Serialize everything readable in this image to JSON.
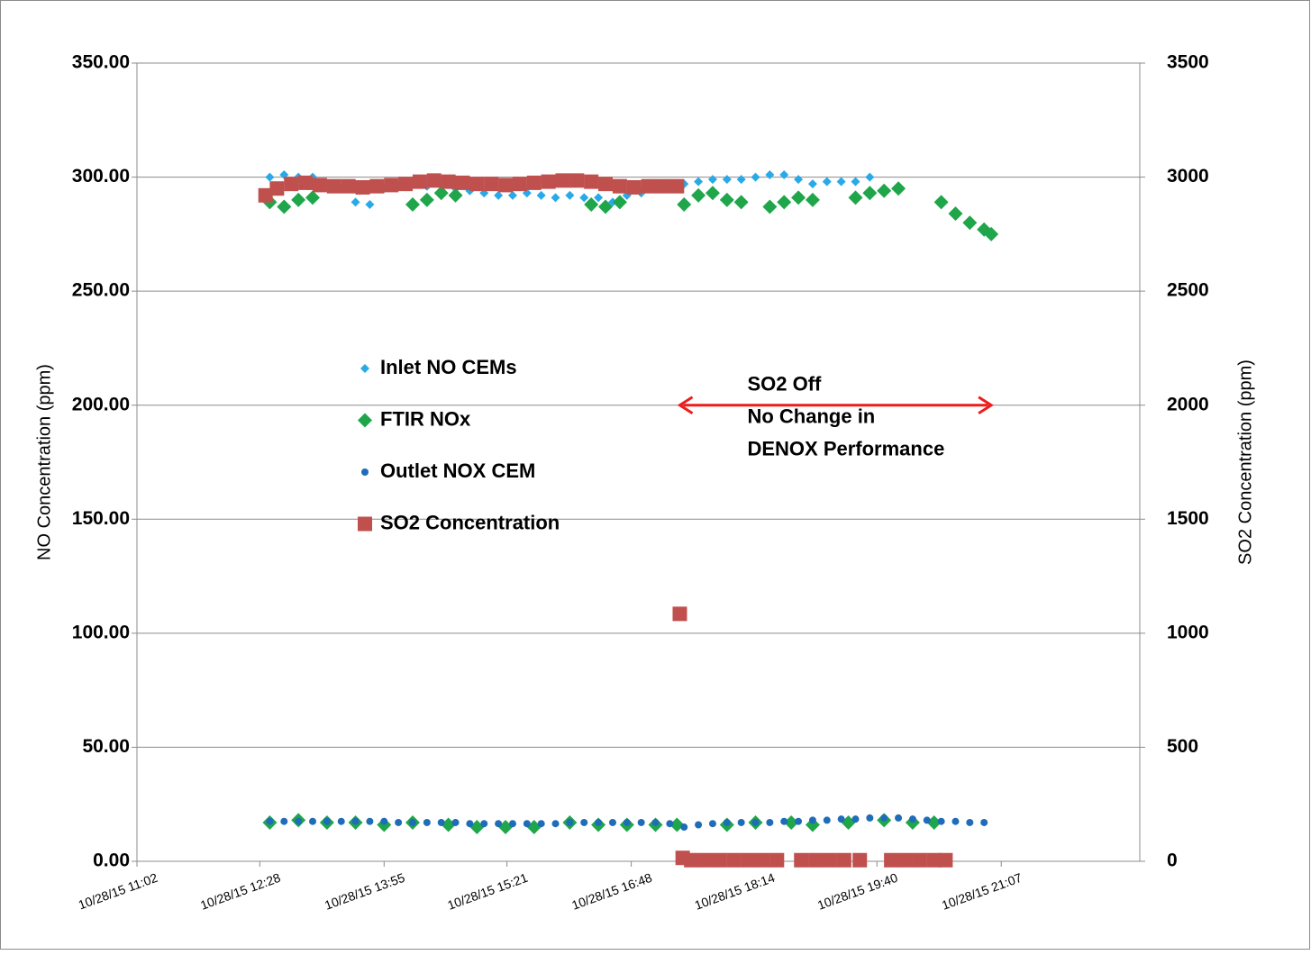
{
  "chart_data": {
    "type": "scatter",
    "ylabel": "NO Concentration (ppm)",
    "y2label": "SO2 Concentration (ppm)",
    "xlim": [
      "10/28/15 11:02",
      "10/28/15 22:44"
    ],
    "xticks": [
      "10/28/15 11:02",
      "10/28/15 12:28",
      "10/28/15 13:55",
      "10/28/15 15:21",
      "10/28/15 16:48",
      "10/28/15 18:14",
      "10/28/15 19:40",
      "10/28/15 21:07"
    ],
    "ylim": [
      0,
      350
    ],
    "yticks": [
      {
        "value": 0,
        "label": "0.00"
      },
      {
        "value": 50,
        "label": "50.00"
      },
      {
        "value": 100,
        "label": "100.00"
      },
      {
        "value": 150,
        "label": "150.00"
      },
      {
        "value": 200,
        "label": "200.00"
      },
      {
        "value": 250,
        "label": "250.00"
      },
      {
        "value": 300,
        "label": "300.00"
      },
      {
        "value": 350,
        "label": "350.00"
      }
    ],
    "y2lim": [
      0,
      3500
    ],
    "y2ticks": [
      0,
      500,
      1000,
      1500,
      2000,
      2500,
      3000,
      3500
    ],
    "grid": true,
    "legend": "center-left",
    "series": [
      {
        "name": "Inlet NO CEMs",
        "color": "#29a9e8",
        "marker": "small-diamond",
        "x": [
          "10/28/15 12:35",
          "10/28/15 12:45",
          "10/28/15 12:55",
          "10/28/15 13:05",
          "10/28/15 13:15",
          "10/28/15 13:25",
          "10/28/15 13:35",
          "10/28/15 13:45",
          "10/28/15 13:55",
          "10/28/15 14:05",
          "10/28/15 14:15",
          "10/28/15 14:25",
          "10/28/15 14:35",
          "10/28/15 14:45",
          "10/28/15 14:55",
          "10/28/15 15:05",
          "10/28/15 15:15",
          "10/28/15 15:25",
          "10/28/15 15:35",
          "10/28/15 15:45",
          "10/28/15 15:55",
          "10/28/15 16:05",
          "10/28/15 16:15",
          "10/28/15 16:25",
          "10/28/15 16:35",
          "10/28/15 16:45",
          "10/28/15 16:55",
          "10/28/15 17:05",
          "10/28/15 17:15",
          "10/28/15 17:25",
          "10/28/15 17:35",
          "10/28/15 17:45",
          "10/28/15 17:55",
          "10/28/15 18:05",
          "10/28/15 18:15",
          "10/28/15 18:25",
          "10/28/15 18:35",
          "10/28/15 18:45",
          "10/28/15 18:55",
          "10/28/15 19:05",
          "10/28/15 19:15",
          "10/28/15 19:25",
          "10/28/15 19:35"
        ],
        "values": [
          300,
          301,
          300,
          300,
          297,
          295,
          289,
          288,
          295,
          296,
          297,
          296,
          298,
          295,
          294,
          293,
          292,
          292,
          293,
          292,
          291,
          292,
          291,
          291,
          289,
          292,
          293,
          295,
          296,
          297,
          298,
          299,
          299,
          299,
          300,
          301,
          301,
          299,
          297,
          298,
          298,
          298,
          300
        ]
      },
      {
        "name": "FTIR NOx",
        "color": "#1fa64a",
        "marker": "diamond",
        "x": [
          "10/28/15 12:35",
          "10/28/15 12:45",
          "10/28/15 12:55",
          "10/28/15 13:05",
          "10/28/15 14:15",
          "10/28/15 14:25",
          "10/28/15 14:35",
          "10/28/15 14:45",
          "10/28/15 16:20",
          "10/28/15 16:30",
          "10/28/15 16:40",
          "10/28/15 17:25",
          "10/28/15 17:35",
          "10/28/15 17:45",
          "10/28/15 17:55",
          "10/28/15 18:05",
          "10/28/15 18:25",
          "10/28/15 18:35",
          "10/28/15 18:45",
          "10/28/15 18:55",
          "10/28/15 19:25",
          "10/28/15 19:35",
          "10/28/15 19:45",
          "10/28/15 19:55",
          "10/28/15 20:25",
          "10/28/15 20:35",
          "10/28/15 20:45",
          "10/28/15 20:55",
          "10/28/15 21:00",
          "10/28/15 12:35",
          "10/28/15 12:55",
          "10/28/15 13:15",
          "10/28/15 13:35",
          "10/28/15 13:55",
          "10/28/15 14:15",
          "10/28/15 14:40",
          "10/28/15 15:00",
          "10/28/15 15:20",
          "10/28/15 15:40",
          "10/28/15 16:05",
          "10/28/15 16:25",
          "10/28/15 16:45",
          "10/28/15 17:05",
          "10/28/15 17:20",
          "10/28/15 17:55",
          "10/28/15 18:15",
          "10/28/15 18:40",
          "10/28/15 18:55",
          "10/28/15 19:20",
          "10/28/15 19:45",
          "10/28/15 20:05",
          "10/28/15 20:20"
        ],
        "values": [
          289,
          287,
          290,
          291,
          288,
          290,
          293,
          292,
          288,
          287,
          289,
          288,
          292,
          293,
          290,
          289,
          287,
          289,
          291,
          290,
          291,
          293,
          294,
          295,
          289,
          284,
          280,
          277,
          275,
          17,
          18,
          17,
          17,
          16,
          17,
          16,
          15,
          15,
          15,
          17,
          16,
          16,
          16,
          16,
          16,
          17,
          17,
          16,
          17,
          18,
          17,
          17
        ]
      },
      {
        "name": "Outlet NOX CEM",
        "color": "#1f6db8",
        "marker": "dot",
        "x": [
          "10/28/15 12:35",
          "10/28/15 12:45",
          "10/28/15 12:55",
          "10/28/15 13:05",
          "10/28/15 13:15",
          "10/28/15 13:25",
          "10/28/15 13:35",
          "10/28/15 13:45",
          "10/28/15 13:55",
          "10/28/15 14:05",
          "10/28/15 14:15",
          "10/28/15 14:25",
          "10/28/15 14:35",
          "10/28/15 14:45",
          "10/28/15 14:55",
          "10/28/15 15:05",
          "10/28/15 15:15",
          "10/28/15 15:25",
          "10/28/15 15:35",
          "10/28/15 15:45",
          "10/28/15 15:55",
          "10/28/15 16:05",
          "10/28/15 16:15",
          "10/28/15 16:25",
          "10/28/15 16:35",
          "10/28/15 16:45",
          "10/28/15 16:55",
          "10/28/15 17:05",
          "10/28/15 17:15",
          "10/28/15 17:25",
          "10/28/15 17:35",
          "10/28/15 17:45",
          "10/28/15 17:55",
          "10/28/15 18:05",
          "10/28/15 18:15",
          "10/28/15 18:25",
          "10/28/15 18:35",
          "10/28/15 18:45",
          "10/28/15 18:55",
          "10/28/15 19:05",
          "10/28/15 19:15",
          "10/28/15 19:25",
          "10/28/15 19:35",
          "10/28/15 19:45",
          "10/28/15 19:55",
          "10/28/15 20:05",
          "10/28/15 20:15",
          "10/28/15 20:25",
          "10/28/15 20:35",
          "10/28/15 20:45",
          "10/28/15 20:55"
        ],
        "values": [
          17.5,
          17.5,
          17.5,
          17.5,
          17.5,
          17.5,
          17.5,
          17.5,
          17.5,
          17,
          17,
          17,
          17,
          17,
          16.5,
          16.5,
          16.5,
          16.5,
          16.5,
          16.5,
          16.5,
          17,
          17,
          17,
          17,
          17,
          17,
          17,
          16.5,
          15,
          16,
          16.5,
          17,
          17,
          17,
          17,
          17.5,
          17.5,
          18,
          18,
          18.5,
          18.5,
          19,
          19,
          19,
          18.5,
          18,
          17.5,
          17.5,
          17,
          17
        ]
      },
      {
        "name": "SO2 Concentration",
        "color": "#c0504d",
        "marker": "square",
        "axis": "y2",
        "x": [
          "10/28/15 12:32",
          "10/28/15 12:40",
          "10/28/15 12:50",
          "10/28/15 13:00",
          "10/28/15 13:10",
          "10/28/15 13:20",
          "10/28/15 13:30",
          "10/28/15 13:40",
          "10/28/15 13:50",
          "10/28/15 14:00",
          "10/28/15 14:10",
          "10/28/15 14:20",
          "10/28/15 14:30",
          "10/28/15 14:40",
          "10/28/15 14:50",
          "10/28/15 15:00",
          "10/28/15 15:10",
          "10/28/15 15:20",
          "10/28/15 15:30",
          "10/28/15 15:40",
          "10/28/15 15:50",
          "10/28/15 16:00",
          "10/28/15 16:10",
          "10/28/15 16:20",
          "10/28/15 16:30",
          "10/28/15 16:40",
          "10/28/15 16:50",
          "10/28/15 17:00",
          "10/28/15 17:10",
          "10/28/15 17:20",
          "10/28/15 17:22",
          "10/28/15 17:24",
          "10/28/15 17:30",
          "10/28/15 17:40",
          "10/28/15 17:50",
          "10/28/15 18:00",
          "10/28/15 18:10",
          "10/28/15 18:20",
          "10/28/15 18:30",
          "10/28/15 18:47",
          "10/28/15 18:57",
          "10/28/15 19:07",
          "10/28/15 19:17",
          "10/28/15 19:28",
          "10/28/15 19:50",
          "10/28/15 20:00",
          "10/28/15 20:10",
          "10/28/15 20:20",
          "10/28/15 20:28"
        ],
        "values": [
          2920,
          2950,
          2970,
          2975,
          2965,
          2960,
          2960,
          2955,
          2960,
          2965,
          2970,
          2980,
          2985,
          2980,
          2975,
          2970,
          2970,
          2965,
          2970,
          2975,
          2980,
          2985,
          2985,
          2980,
          2970,
          2960,
          2955,
          2960,
          2960,
          2960,
          1085,
          15,
          5,
          5,
          5,
          5,
          5,
          5,
          5,
          5,
          5,
          5,
          5,
          5,
          5,
          5,
          5,
          5,
          5
        ]
      }
    ],
    "annotations": [
      {
        "text": [
          "SO2 Off",
          "No Change in",
          "DENOX Performance"
        ],
        "x": [
          "10/28/15 17:22",
          "10/28/15 21:00"
        ],
        "y": 200,
        "color": "#ee1c1c"
      }
    ]
  }
}
